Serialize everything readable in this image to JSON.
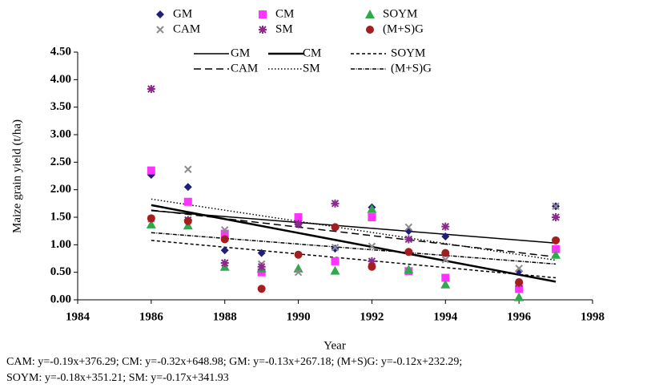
{
  "chart_data": {
    "type": "scatter",
    "xlabel": "Year",
    "ylabel": "Maize grain yield (t/ha)",
    "xlim": [
      1984,
      1998
    ],
    "xticks": [
      1984,
      1986,
      1988,
      1990,
      1992,
      1994,
      1996,
      1998
    ],
    "ylim": [
      0,
      4.5
    ],
    "yticks": [
      {
        "value": 0,
        "label": "0.00"
      },
      {
        "value": 0.5,
        "label": "0.50"
      },
      {
        "value": 1,
        "label": "1.00"
      },
      {
        "value": 1.5,
        "label": "1.50"
      },
      {
        "value": 2,
        "label": "2.00"
      },
      {
        "value": 2.5,
        "label": "2.50"
      },
      {
        "value": 3,
        "label": "3.00"
      },
      {
        "value": 3.5,
        "label": "3.50"
      },
      {
        "value": 4,
        "label": "4.00"
      },
      {
        "value": 4.5,
        "label": "4.50"
      }
    ],
    "x": [
      1986,
      1987,
      1988,
      1989,
      1990,
      1991,
      1992,
      1993,
      1994,
      1996,
      1997
    ],
    "series": [
      {
        "name": "GM",
        "color": "#1f1f7a",
        "marker": "diamond",
        "values": [
          2.27,
          2.05,
          0.9,
          0.85,
          1.37,
          0.93,
          1.68,
          1.25,
          1.15,
          0.52,
          1.7
        ]
      },
      {
        "name": "CM",
        "color": "#ff33ff",
        "marker": "square",
        "values": [
          2.35,
          1.78,
          1.2,
          0.5,
          1.5,
          0.7,
          1.5,
          0.52,
          0.4,
          0.2,
          0.92
        ]
      },
      {
        "name": "SOYM",
        "color": "#2eaa4a",
        "marker": "triangle",
        "values": [
          1.37,
          1.35,
          0.6,
          0.57,
          0.57,
          0.53,
          1.65,
          0.55,
          0.28,
          0.05,
          0.82
        ]
      },
      {
        "name": "CAM",
        "color": "#8c8c8c",
        "marker": "cross",
        "values": [
          1.47,
          2.37,
          1.27,
          0.65,
          0.5,
          0.95,
          0.97,
          1.32,
          0.73,
          0.57,
          1.7
        ]
      },
      {
        "name": "SM",
        "color": "#8b2a8b",
        "marker": "star",
        "values": [
          3.83,
          1.45,
          0.67,
          0.6,
          1.38,
          1.75,
          0.7,
          1.1,
          1.33,
          0.3,
          1.5
        ]
      },
      {
        "name": "(M+S)G",
        "color": "#a31e1e",
        "marker": "circle",
        "values": [
          1.48,
          1.43,
          1.1,
          0.2,
          0.82,
          1.32,
          0.6,
          0.87,
          0.85,
          0.32,
          1.08
        ]
      }
    ],
    "trendlines": [
      {
        "name": "GM",
        "dash": "none",
        "width": 1.5,
        "x": [
          1986,
          1997
        ],
        "values": [
          1.62,
          1.03
        ]
      },
      {
        "name": "CM",
        "dash": "none",
        "width": 2.5,
        "x": [
          1986,
          1997
        ],
        "values": [
          1.72,
          0.33
        ]
      },
      {
        "name": "SOYM",
        "dash": "4,3",
        "width": 1.5,
        "x": [
          1986,
          1997
        ],
        "values": [
          1.08,
          0.4
        ]
      },
      {
        "name": "CAM",
        "dash": "9,5",
        "width": 1.5,
        "x": [
          1986,
          1997
        ],
        "values": [
          1.63,
          0.78
        ]
      },
      {
        "name": "SM",
        "dash": "1.5,2.5",
        "width": 1.5,
        "x": [
          1986,
          1997
        ],
        "values": [
          1.83,
          0.72
        ]
      },
      {
        "name": "(M+S)G",
        "dash": "5,1.5,1,1.5",
        "width": 1.5,
        "x": [
          1986,
          1997
        ],
        "values": [
          1.22,
          0.65
        ]
      }
    ],
    "note": [
      "CAM: y=-0.19x+376.29; CM: y=-0.32x+648.98; GM: y=-0.13x+267.18; (M+S)G: y=-0.12x+232.29;",
      "SOYM: y=-0.18x+351.21; SM: y=-0.17x+341.93"
    ]
  }
}
